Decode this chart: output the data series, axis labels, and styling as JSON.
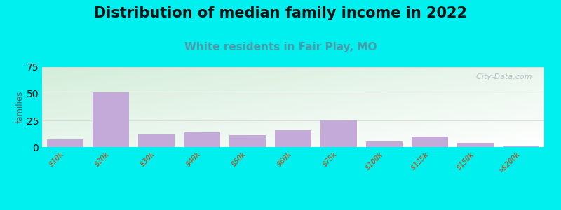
{
  "title": "Distribution of median family income in 2022",
  "subtitle": "White residents in Fair Play, MO",
  "categories": [
    "$10k",
    "$20k",
    "$30k",
    "$40k",
    "$50k",
    "$60k",
    "$75k",
    "$100k",
    "$125k",
    "$150k",
    ">$200k"
  ],
  "values": [
    7,
    51,
    12,
    14,
    11,
    16,
    25,
    5,
    10,
    4,
    1
  ],
  "bar_color": "#c4aad8",
  "ylabel": "families",
  "ylim": [
    0,
    75
  ],
  "yticks": [
    0,
    25,
    50,
    75
  ],
  "background_outer": "#00efef",
  "background_plot_green": "#d4edda",
  "background_plot_white": "#ffffff",
  "title_fontsize": 15,
  "subtitle_fontsize": 11,
  "subtitle_color": "#4a9aaa",
  "watermark": "  City-Data.com",
  "grid_color": "#dddddd",
  "tick_color": "#cc4400",
  "ylabel_color": "#555555"
}
